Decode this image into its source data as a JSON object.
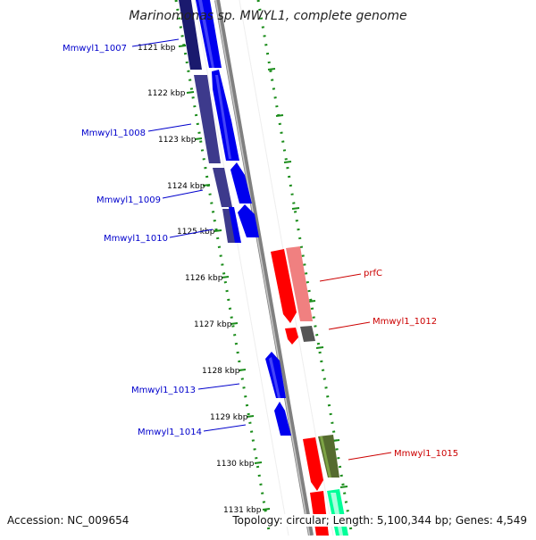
{
  "title": "Marinomonas sp. MWYL1, complete genome",
  "footer": {
    "accession": "Accession: NC_009654",
    "topology": "Topology: circular; Length: 5,100,344 bp; Genes: 4,549"
  },
  "ruler": {
    "ticks": [
      {
        "label": "1121 kbp"
      },
      {
        "label": "1122 kbp"
      },
      {
        "label": "1123 kbp"
      },
      {
        "label": "1124 kbp"
      },
      {
        "label": "1125 kbp"
      },
      {
        "label": "1126 kbp"
      },
      {
        "label": "1127 kbp"
      },
      {
        "label": "1128 kbp"
      },
      {
        "label": "1129 kbp"
      },
      {
        "label": "1130 kbp"
      },
      {
        "label": "1131 kbp"
      }
    ]
  },
  "genes": [
    {
      "name": "Mmwyl1_1007",
      "strand": "left",
      "color": "#0000cc"
    },
    {
      "name": "Mmwyl1_1008",
      "strand": "left",
      "color": "#0000cc"
    },
    {
      "name": "Mmwyl1_1009",
      "strand": "left",
      "color": "#0000cc"
    },
    {
      "name": "Mmwyl1_1010",
      "strand": "left",
      "color": "#0000cc"
    },
    {
      "name": "prfC",
      "strand": "right",
      "color": "#cc0000"
    },
    {
      "name": "Mmwyl1_1012",
      "strand": "right",
      "color": "#cc0000"
    },
    {
      "name": "Mmwyl1_1013",
      "strand": "left",
      "color": "#0000cc"
    },
    {
      "name": "Mmwyl1_1014",
      "strand": "left",
      "color": "#0000cc"
    },
    {
      "name": "Mmwyl1_1015",
      "strand": "right",
      "color": "#cc0000"
    }
  ]
}
